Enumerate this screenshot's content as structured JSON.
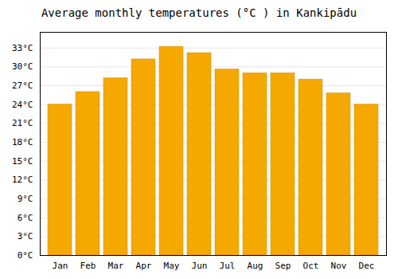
{
  "chart_data": {
    "type": "bar",
    "title": "Average monthly temperatures (°C ) in Kankipādu",
    "categories": [
      "Jan",
      "Feb",
      "Mar",
      "Apr",
      "May",
      "Jun",
      "Jul",
      "Aug",
      "Sep",
      "Oct",
      "Nov",
      "Dec"
    ],
    "values": [
      24.0,
      26.0,
      28.2,
      31.2,
      33.2,
      32.2,
      29.6,
      29.0,
      29.0,
      28.0,
      25.8,
      24.0
    ],
    "color": "#F5A800",
    "ylim": [
      0,
      35.5
    ],
    "yticks": [
      {
        "value": 0,
        "label": "0°C"
      },
      {
        "value": 3,
        "label": "3°C"
      },
      {
        "value": 6,
        "label": "6°C"
      },
      {
        "value": 9,
        "label": "9°C"
      },
      {
        "value": 12,
        "label": "12°C"
      },
      {
        "value": 15,
        "label": "15°C"
      },
      {
        "value": 18,
        "label": "18°C"
      },
      {
        "value": 21,
        "label": "21°C"
      },
      {
        "value": 24,
        "label": "24°C"
      },
      {
        "value": 27,
        "label": "27°C"
      },
      {
        "value": 30,
        "label": "30°C"
      },
      {
        "value": 33,
        "label": "33°C"
      }
    ],
    "grid": true
  }
}
